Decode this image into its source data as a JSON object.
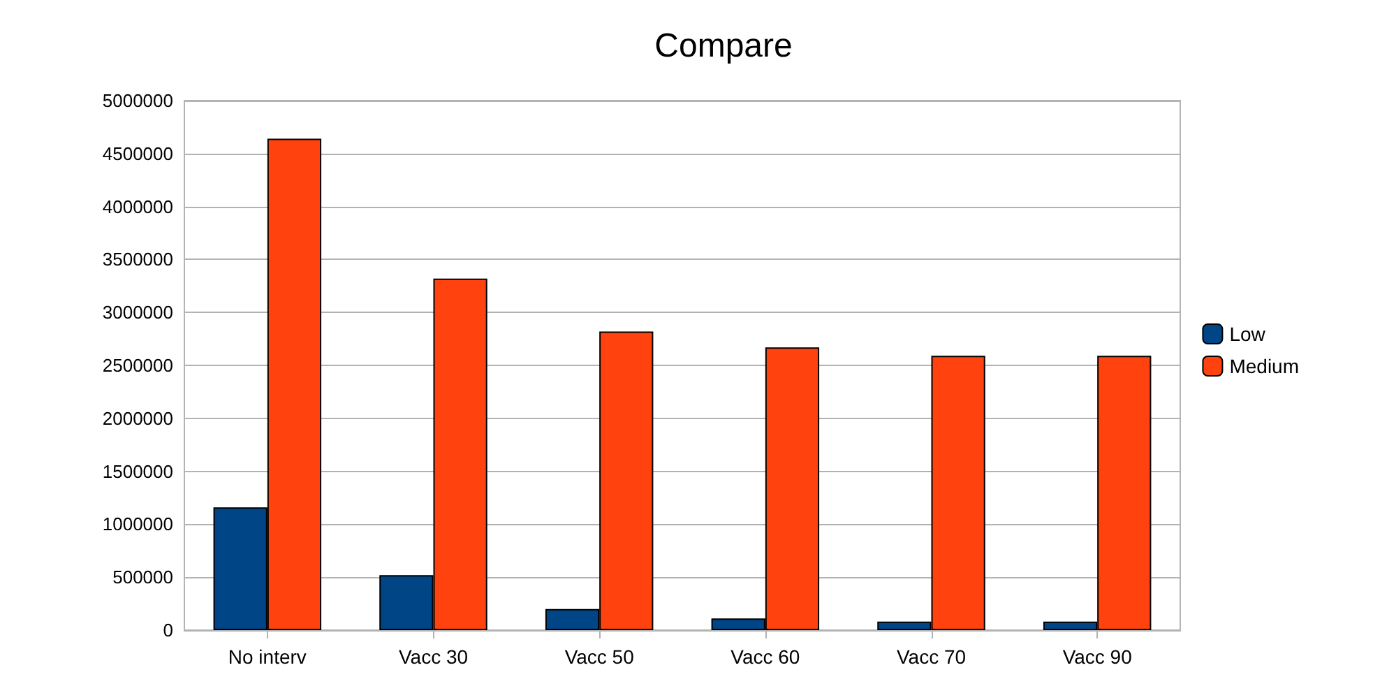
{
  "chart_data": {
    "type": "bar",
    "title": "Compare",
    "categories": [
      "No interv",
      "Vacc 30",
      "Vacc 50",
      "Vacc 60",
      "Vacc 70",
      "Vacc 90"
    ],
    "series": [
      {
        "name": "Low",
        "color": "#004586",
        "values": [
          1160000,
          520000,
          200000,
          110000,
          80000,
          80000
        ]
      },
      {
        "name": "Medium",
        "color": "#ff420e",
        "values": [
          4640000,
          3320000,
          2820000,
          2670000,
          2590000,
          2590000
        ]
      }
    ],
    "ylim": [
      0,
      5000000
    ],
    "yticks": [
      0,
      500000,
      1000000,
      1500000,
      2000000,
      2500000,
      3000000,
      3500000,
      4000000,
      4500000,
      5000000
    ],
    "grid": "y",
    "legend": "right"
  }
}
